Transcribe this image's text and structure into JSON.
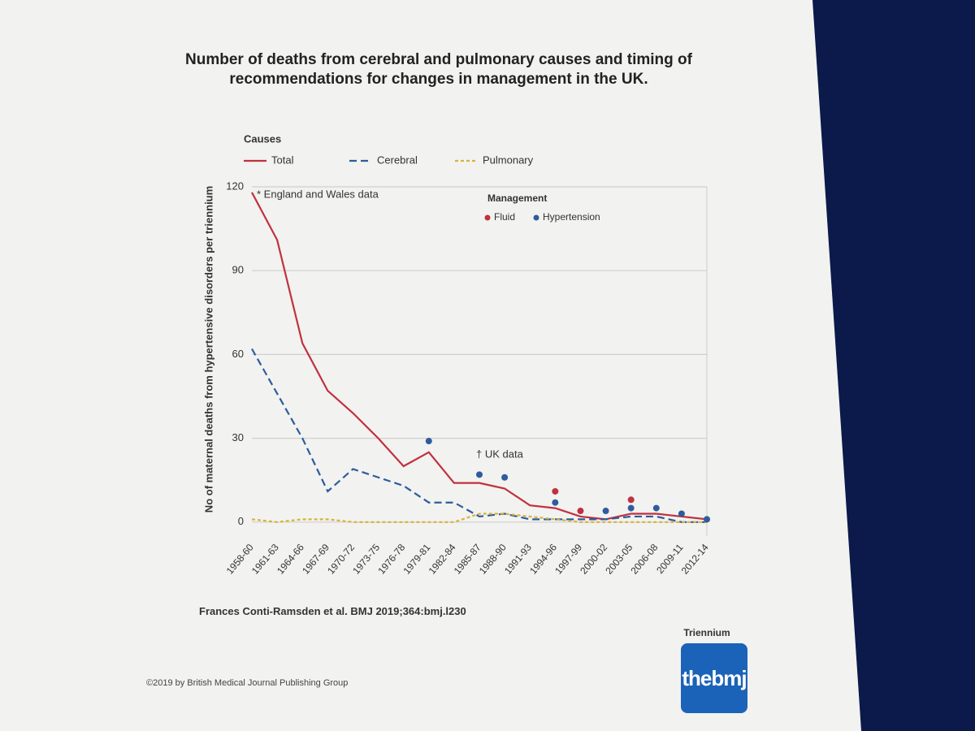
{
  "chart_data": {
    "type": "line",
    "title": "Number of deaths from cerebral and pulmonary causes and timing of recommendations for changes in management in the UK.",
    "legend_title": "Causes",
    "ylabel": "No of maternal deaths from hypertensive disorders per triennium",
    "xlabel": "Triennium",
    "categories": [
      "1958-60",
      "1961-63",
      "1964-66",
      "1967-69",
      "1970-72",
      "1973-75",
      "1976-78",
      "1979-81",
      "1982-84",
      "1985-87",
      "1988-90",
      "1991-93",
      "1994-96",
      "1997-99",
      "2000-02",
      "2003-05",
      "2006-08",
      "2009-11",
      "2012-14"
    ],
    "series": [
      {
        "name": "Total",
        "color": "#c0313e",
        "dash": "solid",
        "values": [
          118,
          101,
          64,
          47,
          39,
          30,
          20,
          25,
          14,
          14,
          12,
          6,
          5,
          2,
          1,
          3,
          3,
          2,
          1
        ]
      },
      {
        "name": "Cerebral",
        "color": "#2e5c9c",
        "dash": "dashed",
        "values": [
          62,
          46,
          30,
          11,
          19,
          16,
          13,
          7,
          7,
          2,
          3,
          1,
          1,
          1,
          1,
          2,
          2,
          0,
          0
        ]
      },
      {
        "name": "Pulmonary",
        "color": "#d9b23a",
        "dash": "dotted",
        "values": [
          1,
          0,
          1,
          1,
          0,
          0,
          0,
          0,
          0,
          3,
          3,
          2,
          1,
          0,
          0,
          0,
          0,
          0,
          0
        ]
      }
    ],
    "management": {
      "title": "Management",
      "series": [
        {
          "name": "Fluid",
          "color": "#c0313e",
          "values": [
            null,
            null,
            null,
            null,
            null,
            null,
            null,
            null,
            null,
            null,
            null,
            null,
            11,
            4,
            null,
            8,
            null,
            null,
            null
          ]
        },
        {
          "name": "Hypertension",
          "color": "#2e5c9c",
          "values": [
            null,
            null,
            null,
            null,
            null,
            null,
            null,
            29,
            null,
            17,
            16,
            null,
            7,
            null,
            4,
            5,
            5,
            3,
            1
          ]
        }
      ]
    },
    "annotations": [
      "* England and Wales data",
      "† UK data"
    ],
    "ylim": [
      -5,
      120
    ],
    "yticks": [
      0,
      30,
      60,
      90,
      120
    ],
    "grid": true
  },
  "source": "Frances Conti-Ramsden et al. BMJ 2019;364:bmj.l230",
  "copyright": "©2019 by British Medical Journal Publishing Group",
  "logo": "thebmj"
}
